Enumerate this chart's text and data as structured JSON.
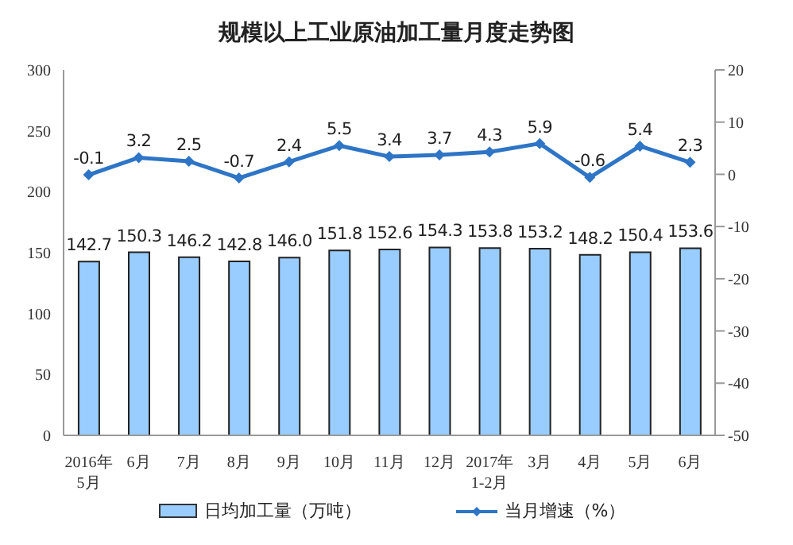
{
  "chart_data": {
    "type": "bar",
    "title": "规模以上工业原油加工量月度走势图",
    "categories": [
      "2016年\n5月",
      "6月",
      "7月",
      "8月",
      "9月",
      "10月",
      "11月",
      "12月",
      "2017年\n1-2月",
      "3月",
      "4月",
      "5月",
      "6月"
    ],
    "series": [
      {
        "name": "日均加工量（万吨）",
        "color": "#99ccff",
        "values": [
          142.7,
          150.3,
          146.2,
          142.8,
          146.0,
          151.8,
          152.6,
          154.3,
          153.8,
          153.2,
          148.2,
          150.4,
          153.6
        ],
        "value_labels": [
          "142.7",
          "150.3",
          "146.2",
          "142.8",
          "146.0",
          "151.8",
          "152.6",
          "154.3",
          "153.8",
          "153.2",
          "148.2",
          "150.4",
          "153.6"
        ]
      },
      {
        "name": "当月增速（%）",
        "type": "line",
        "axis": "y2",
        "color": "#2e75c6",
        "marker": "diamond",
        "values": [
          -0.1,
          3.2,
          2.5,
          -0.7,
          2.4,
          5.5,
          3.4,
          3.7,
          4.3,
          5.9,
          -0.6,
          5.4,
          2.3
        ],
        "value_labels": [
          "-0.1",
          "3.2",
          "2.5",
          "-0.7",
          "2.4",
          "5.5",
          "3.4",
          "3.7",
          "4.3",
          "5.9",
          "-0.6",
          "5.4",
          "2.3"
        ]
      }
    ],
    "ylim": [
      0,
      300
    ],
    "yticks": [
      0,
      50,
      100,
      150,
      200,
      250,
      300
    ],
    "y2lim": [
      -50,
      20
    ],
    "y2ticks": [
      -50,
      -40,
      -30,
      -20,
      -10,
      0,
      10,
      20
    ],
    "grid": false,
    "legend": "bottom"
  }
}
